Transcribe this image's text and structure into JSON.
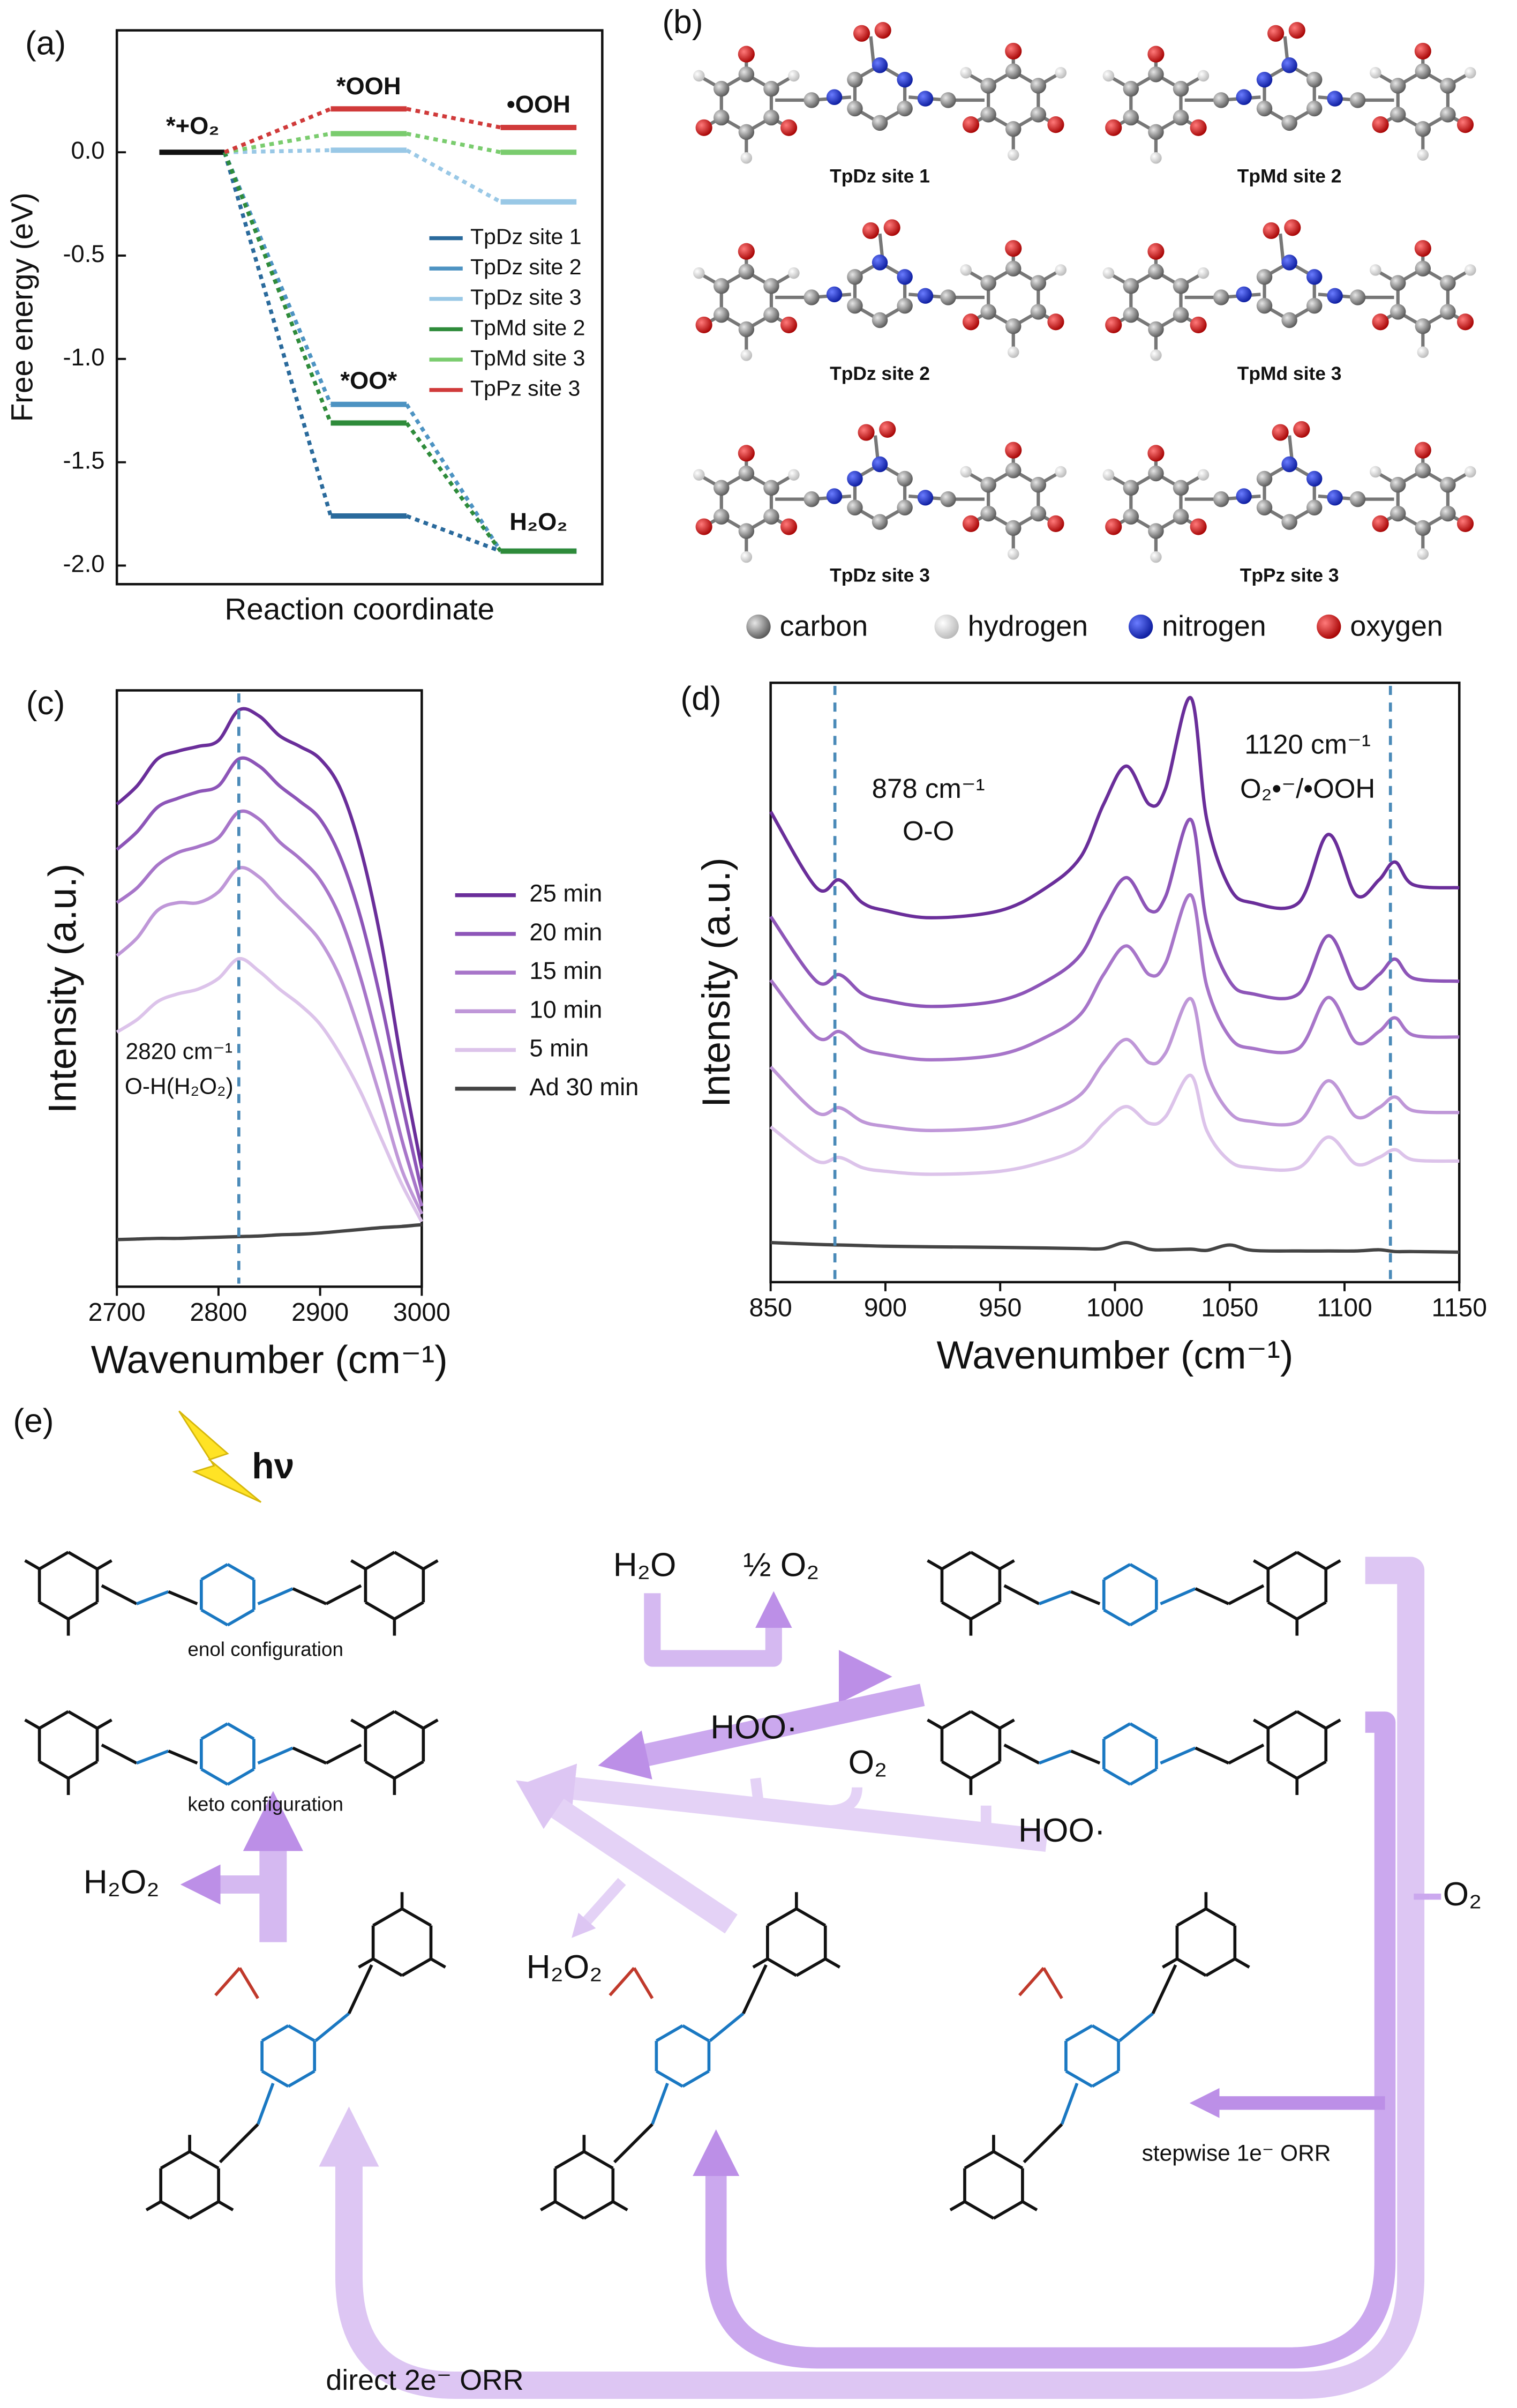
{
  "panel_labels": [
    "(a)",
    "(b)",
    "(c)",
    "(d)",
    "(e)"
  ],
  "chart_data": [
    {
      "type": "energy-profile",
      "ylabel": "Free energy (eV)",
      "xlabel": "Reaction coordinate",
      "ylim": [
        -2.09,
        0.59
      ],
      "yticks": [
        {
          "value": 0,
          "label": "0.0"
        },
        -0.5,
        {
          "value": -1,
          "label": "-1.0"
        },
        -1.5,
        {
          "value": -2,
          "label": "-2.0"
        }
      ],
      "annotations": [
        "*+O₂",
        "*OOH",
        "•OOH",
        "*OO*",
        "H₂O₂"
      ],
      "legend": "right",
      "series": [
        {
          "name": "TpDz site 1",
          "color": "#2a6a9c",
          "values": [
            0,
            -1.76,
            -1.93
          ]
        },
        {
          "name": "TpDz site 2",
          "color": "#4d93c2",
          "values": [
            0,
            -1.22,
            -1.93
          ]
        },
        {
          "name": "TpDz site 3",
          "color": "#99c8e6",
          "values": [
            0,
            0.01,
            -0.24
          ]
        },
        {
          "name": "TpMd site 2",
          "color": "#2e8b3a",
          "values": [
            0,
            -1.31,
            -1.93
          ]
        },
        {
          "name": "TpMd site 3",
          "color": "#7acc6e",
          "values": [
            0,
            0.09,
            0.0
          ]
        },
        {
          "name": "TpPz site 3",
          "color": "#d03a3a",
          "values": [
            0,
            0.21,
            0.12
          ]
        }
      ]
    },
    {
      "type": "line",
      "xlabel": "Wavenumber (cm⁻¹)",
      "ylabel": "Intensity (a.u.)",
      "xlim": [
        2700,
        3000
      ],
      "xticks": [
        2700,
        2800,
        2900,
        3000
      ],
      "ylim": [
        0,
        100
      ],
      "vlines": [
        2820
      ],
      "annotations": [
        "2820 cm⁻¹",
        "O-H(H₂O₂)"
      ],
      "legend": "outside-right",
      "x": [
        2700,
        2720,
        2740,
        2760,
        2780,
        2800,
        2820,
        2840,
        2860,
        2880,
        2900,
        2920,
        2940,
        2960,
        2980,
        3000
      ],
      "series": [
        {
          "name": "25 min",
          "color": "#6a2e9a",
          "values": [
            80.9,
            84.0,
            88.5,
            89.8,
            90.6,
            91.6,
            96.7,
            95.7,
            92.4,
            90.6,
            88.5,
            83.5,
            73.3,
            58.0,
            37.7,
            19.8
          ]
        },
        {
          "name": "20 min",
          "color": "#8d55b8",
          "values": [
            73.3,
            76.3,
            80.4,
            81.9,
            83.0,
            84.0,
            88.5,
            87.3,
            84.0,
            81.4,
            78.4,
            72.0,
            61.8,
            47.8,
            31.3,
            16.0
          ]
        },
        {
          "name": "15 min",
          "color": "#a775c9",
          "values": [
            64.4,
            66.9,
            70.7,
            72.8,
            73.8,
            75.3,
            79.6,
            78.4,
            74.6,
            71.8,
            68.2,
            61.8,
            51.7,
            38.9,
            24.9,
            13.5
          ]
        },
        {
          "name": "10 min",
          "color": "#bf97d8",
          "values": [
            55.5,
            58.5,
            63.1,
            64.4,
            64.4,
            66.2,
            70.2,
            68.7,
            65.1,
            61.8,
            58.0,
            51.7,
            42.2,
            31.3,
            19.8,
            12.2
          ]
        },
        {
          "name": "5 min",
          "color": "#dcc3ea",
          "values": [
            42.7,
            44.8,
            47.8,
            49.1,
            49.9,
            51.7,
            55.0,
            52.9,
            49.9,
            47.3,
            44.0,
            38.9,
            32.6,
            24.9,
            17.3,
            10.9
          ]
        },
        {
          "name": "Ad 30 min",
          "color": "#444444",
          "values": [
            7.9,
            8.0,
            8.1,
            8.1,
            8.2,
            8.3,
            8.4,
            8.5,
            8.7,
            8.8,
            9.0,
            9.3,
            9.6,
            9.9,
            10.1,
            10.4
          ]
        }
      ]
    },
    {
      "type": "line",
      "xlabel": "Wavenumber (cm⁻¹)",
      "ylabel": "Intensity (a.u.)",
      "xlim": [
        850,
        1150
      ],
      "xticks": [
        850,
        900,
        950,
        1000,
        1050,
        1100,
        1150
      ],
      "ylim": [
        0,
        100
      ],
      "vlines": [
        878,
        1120
      ],
      "annotations": [
        "878 cm⁻¹",
        "O-O",
        "1120 cm⁻¹",
        "O₂•⁻/•OOH"
      ],
      "x": [
        850,
        870,
        880,
        890,
        900,
        920,
        950,
        970,
        985,
        995,
        1005,
        1015,
        1022,
        1033,
        1040,
        1050,
        1060,
        1080,
        1093,
        1105,
        1115,
        1122,
        1130,
        1150
      ],
      "series": [
        {
          "color": "#6a2e9a",
          "values": [
            78.5,
            65.8,
            67.1,
            63.3,
            62.0,
            60.8,
            62.0,
            65.8,
            70.9,
            79.7,
            86.1,
            79.7,
            82.3,
            97.5,
            77.2,
            65.8,
            63.3,
            63.3,
            74.7,
            64.6,
            67.1,
            70.1,
            66.3,
            65.8
          ]
        },
        {
          "color": "#8d55b8",
          "values": [
            61.0,
            50.2,
            51.3,
            48.1,
            47.0,
            46.0,
            47.0,
            50.2,
            54.6,
            62.0,
            67.5,
            62.0,
            64.3,
            77.2,
            59.9,
            50.2,
            48.1,
            48.1,
            57.8,
            49.2,
            51.3,
            53.9,
            50.7,
            50.2
          ]
        },
        {
          "color": "#a775c9",
          "values": [
            50.4,
            40.9,
            41.8,
            39.0,
            38.0,
            37.1,
            38.0,
            40.9,
            44.7,
            51.3,
            56.1,
            51.3,
            53.2,
            64.6,
            49.4,
            40.9,
            39.0,
            39.0,
            47.5,
            40.0,
            41.8,
            44.1,
            41.2,
            40.9
          ]
        },
        {
          "color": "#bf97d8",
          "values": [
            35.9,
            28.3,
            29.1,
            26.8,
            26.0,
            25.3,
            26.0,
            28.3,
            31.3,
            36.6,
            40.5,
            36.6,
            38.2,
            47.3,
            35.1,
            28.3,
            26.8,
            26.8,
            33.6,
            27.6,
            29.1,
            30.9,
            28.6,
            28.3
          ]
        },
        {
          "color": "#dcc3ea",
          "values": [
            25.9,
            20.2,
            20.8,
            19.1,
            18.5,
            18.0,
            18.5,
            20.2,
            22.5,
            26.5,
            29.3,
            26.5,
            27.6,
            34.5,
            25.3,
            20.2,
            19.1,
            19.1,
            24.2,
            19.7,
            20.8,
            22.1,
            20.4,
            20.2
          ]
        },
        {
          "color": "#444444",
          "values": [
            6.6,
            6.3,
            6.2,
            6.1,
            6.0,
            5.9,
            5.8,
            5.7,
            5.6,
            5.6,
            6.6,
            5.5,
            5.4,
            5.5,
            5.3,
            6.2,
            5.3,
            5.2,
            5.2,
            5.2,
            5.4,
            5.1,
            5.1,
            5.0
          ]
        }
      ]
    }
  ],
  "molecules": {
    "labels": [
      "TpDz site 1",
      "TpMd site 2",
      "TpDz site 2",
      "TpMd site 3",
      "TpDz site 3",
      "TpPz site 3"
    ],
    "atom_legend": [
      "carbon",
      "hydrogen",
      "nitrogen",
      "oxygen"
    ]
  },
  "scheme": {
    "labels": [
      "hν",
      "enol configuration",
      "keto configuration",
      "H₂O",
      "½ O₂",
      "HOO·",
      "O₂",
      "HOO·",
      "O₂",
      "H₂O₂",
      "H₂O₂",
      "stepwise 1e⁻ ORR",
      "direct 2e⁻ ORR"
    ]
  }
}
